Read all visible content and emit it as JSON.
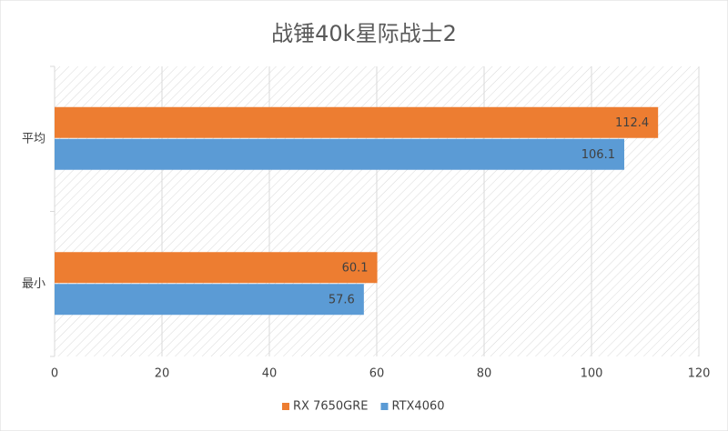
{
  "chart_data": {
    "type": "bar",
    "orientation": "horizontal",
    "title": "战锤40k星际战士2",
    "categories": [
      "平均",
      "最小"
    ],
    "series": [
      {
        "name": "RX 7650GRE",
        "color": "#ed7d31",
        "values": [
          112.4,
          60.1
        ]
      },
      {
        "name": "RTX4060",
        "color": "#5b9bd5",
        "values": [
          106.1,
          57.6
        ]
      }
    ],
    "xlim": [
      0,
      120
    ],
    "xticks": [
      0,
      20,
      40,
      60,
      80,
      100,
      120
    ],
    "grid": true,
    "legend": "bottom"
  }
}
